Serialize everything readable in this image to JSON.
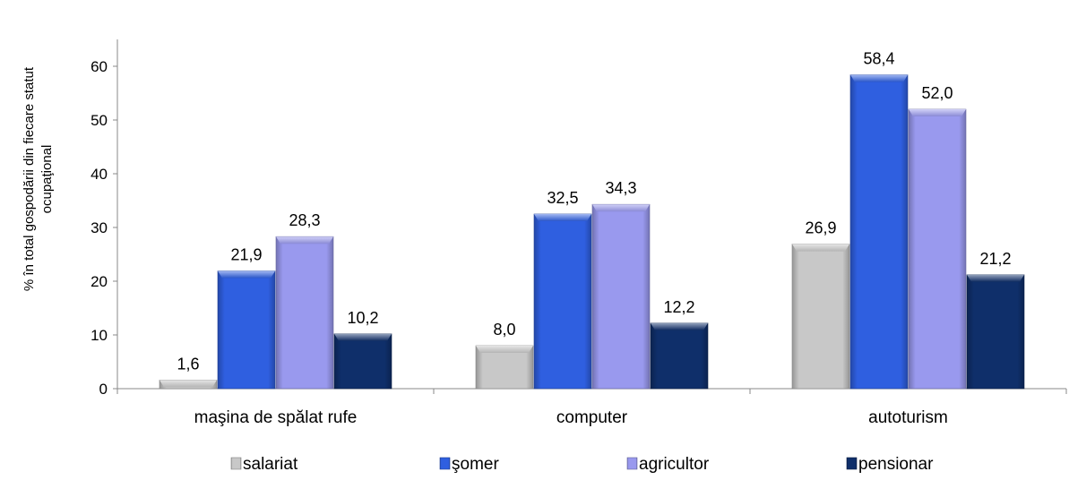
{
  "chart_data": {
    "type": "bar",
    "categories": [
      "maşina de spălat rufe",
      "computer",
      "autoturism"
    ],
    "series": [
      {
        "name": "salariat",
        "values": [
          1.6,
          8.0,
          26.9
        ],
        "labels": [
          "1,6",
          "8,0",
          "26,9"
        ],
        "color": "#c8c8c8"
      },
      {
        "name": "şomer",
        "values": [
          21.9,
          32.5,
          58.4
        ],
        "labels": [
          "21,9",
          "32,5",
          "58,4"
        ],
        "color": "#2f5fe0"
      },
      {
        "name": "agricultor",
        "values": [
          28.3,
          34.3,
          52.0
        ],
        "labels": [
          "28,3",
          "34,3",
          "52,0"
        ],
        "color": "#9999ee"
      },
      {
        "name": "pensionar",
        "values": [
          10.2,
          12.2,
          21.2
        ],
        "labels": [
          "10,2",
          "12,2",
          "21,2"
        ],
        "color": "#0f2f6a"
      }
    ],
    "ylabel_lines": [
      "% în total gospodării din fiecare statut",
      "ocupaţional"
    ],
    "ylim": [
      0,
      65
    ],
    "yticks": [
      0,
      10,
      20,
      30,
      40,
      50,
      60
    ],
    "grid": false,
    "legend_position": "bottom"
  }
}
